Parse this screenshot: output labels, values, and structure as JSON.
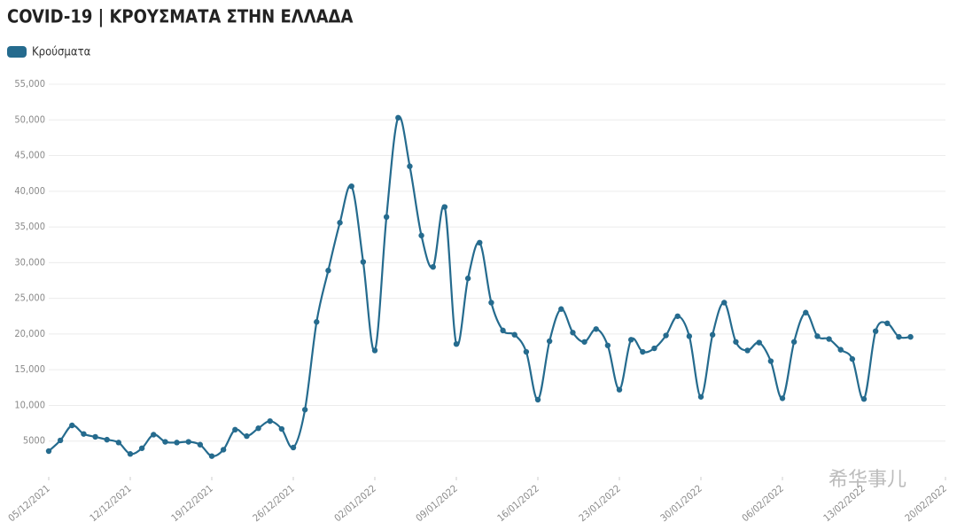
{
  "chart_data": {
    "type": "line",
    "title": "COVID-19 | ΚΡΟΥΣΜΑΤΑ ΣΤΗΝ ΕΛΛΑΔΑ",
    "watermark": "希华事儿",
    "x": [
      "05/12/2021",
      "06/12/2021",
      "07/12/2021",
      "08/12/2021",
      "09/12/2021",
      "10/12/2021",
      "11/12/2021",
      "12/12/2021",
      "13/12/2021",
      "14/12/2021",
      "15/12/2021",
      "16/12/2021",
      "17/12/2021",
      "18/12/2021",
      "19/12/2021",
      "20/12/2021",
      "21/12/2021",
      "22/12/2021",
      "23/12/2021",
      "24/12/2021",
      "25/12/2021",
      "26/12/2021",
      "27/12/2021",
      "28/12/2021",
      "29/12/2021",
      "30/12/2021",
      "31/12/2021",
      "01/01/2022",
      "02/01/2022",
      "03/01/2022",
      "04/01/2022",
      "05/01/2022",
      "06/01/2022",
      "07/01/2022",
      "08/01/2022",
      "09/01/2022",
      "10/01/2022",
      "11/01/2022",
      "12/01/2022",
      "13/01/2022",
      "14/01/2022",
      "15/01/2022",
      "16/01/2022",
      "17/01/2022",
      "18/01/2022",
      "19/01/2022",
      "20/01/2022",
      "21/01/2022",
      "22/01/2022",
      "23/01/2022",
      "24/01/2022",
      "25/01/2022",
      "26/01/2022",
      "27/01/2022",
      "28/01/2022",
      "29/01/2022",
      "30/01/2022",
      "31/01/2022",
      "01/02/2022",
      "02/02/2022",
      "03/02/2022",
      "04/02/2022",
      "05/02/2022",
      "06/02/2022",
      "07/02/2022",
      "08/02/2022",
      "09/02/2022",
      "10/02/2022",
      "11/02/2022",
      "12/02/2022",
      "13/02/2022",
      "14/02/2022",
      "15/02/2022",
      "16/02/2022",
      "17/02/2022"
    ],
    "series": [
      {
        "name": "Κρούσματα",
        "color": "#256b8e",
        "values": [
          3600,
          5100,
          7200,
          6000,
          5600,
          5200,
          4800,
          3200,
          4000,
          5900,
          4900,
          4800,
          4900,
          4500,
          2900,
          3800,
          6600,
          5700,
          6800,
          7800,
          6700,
          4100,
          9400,
          21700,
          28900,
          35600,
          40700,
          30100,
          17700,
          36400,
          50300,
          43500,
          33800,
          29400,
          37800,
          18600,
          27800,
          32800,
          24400,
          20500,
          19900,
          17500,
          10800,
          19000,
          23500,
          20200,
          18900,
          20700,
          18400,
          12200,
          19200,
          17500,
          18000,
          19800,
          22500,
          19700,
          11200,
          19900,
          24400,
          18900,
          17700,
          18800,
          16200,
          11000,
          18900,
          23000,
          19700,
          19300,
          17800,
          16500,
          10900,
          20400,
          21500,
          19600,
          19600
        ]
      }
    ],
    "xlim": [
      "05/12/2021",
      "20/02/2022"
    ],
    "xticks": [
      "05/12/2021",
      "12/12/2021",
      "19/12/2021",
      "26/12/2021",
      "02/01/2022",
      "09/01/2022",
      "16/01/2022",
      "23/01/2022",
      "30/01/2022",
      "06/02/2022",
      "13/02/2022",
      "20/02/2022"
    ],
    "ylim": [
      0,
      55000
    ],
    "yticks": [
      5000,
      {
        "value": 10000,
        "label": "10,000"
      },
      {
        "value": 15000,
        "label": "15,000"
      },
      {
        "value": 20000,
        "label": "20,000"
      },
      {
        "value": 25000,
        "label": "25,000"
      },
      {
        "value": 30000,
        "label": "30,000"
      },
      {
        "value": 35000,
        "label": "35,000"
      },
      {
        "value": 40000,
        "label": "40,000"
      },
      {
        "value": 45000,
        "label": "45,000"
      },
      {
        "value": 50000,
        "label": "50,000"
      },
      {
        "value": 55000,
        "label": "55,000"
      }
    ],
    "grid": true
  }
}
